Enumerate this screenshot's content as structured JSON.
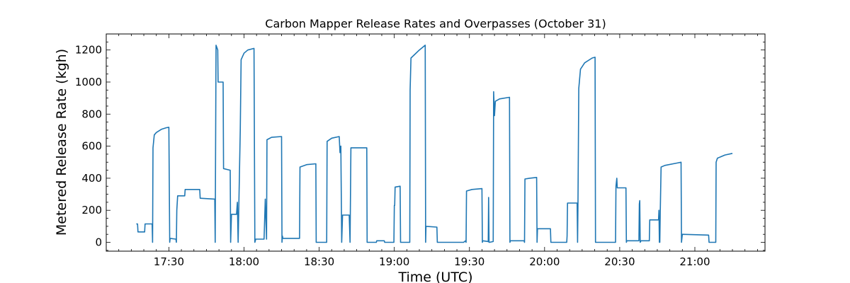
{
  "chart_data": {
    "type": "line",
    "title": "Carbon Mapper Release Rates and Overpasses (October 31)",
    "xlabel": "Time (UTC)",
    "ylabel": "Metered Release Rate (kgh)",
    "xlim": [
      "17:05",
      "21:28"
    ],
    "ylim": [
      -55,
      1300
    ],
    "xticks": [
      "17:30",
      "18:00",
      "18:30",
      "19:00",
      "19:30",
      "20:00",
      "20:30",
      "21:00"
    ],
    "yticks": [
      0,
      200,
      400,
      600,
      800,
      1000,
      1200
    ],
    "grid": false,
    "legend": "none",
    "series": [
      {
        "color": "#1f77b4",
        "points": [
          [
            "17:17:00",
            115
          ],
          [
            "17:17:30",
            115
          ],
          [
            "17:17:40",
            65
          ],
          [
            "17:20:20",
            65
          ],
          [
            "17:20:30",
            115
          ],
          [
            "17:23:20",
            115
          ],
          [
            "17:23:30",
            0
          ],
          [
            "17:23:40",
            590
          ],
          [
            "17:24:10",
            670
          ],
          [
            "17:25:00",
            685
          ],
          [
            "17:27:00",
            705
          ],
          [
            "17:29:00",
            715
          ],
          [
            "17:30:00",
            718
          ],
          [
            "17:30:20",
            0
          ],
          [
            "17:30:30",
            25
          ],
          [
            "17:32:50",
            20
          ],
          [
            "17:33:00",
            0
          ],
          [
            "17:33:10",
            200
          ],
          [
            "17:33:30",
            290
          ],
          [
            "17:36:20",
            290
          ],
          [
            "17:36:30",
            330
          ],
          [
            "17:42:20",
            330
          ],
          [
            "17:42:30",
            275
          ],
          [
            "17:48:20",
            270
          ],
          [
            "17:48:30",
            0
          ],
          [
            "17:48:50",
            1230
          ],
          [
            "17:49:30",
            1200
          ],
          [
            "17:49:40",
            1000
          ],
          [
            "17:51:40",
            1000
          ],
          [
            "17:51:50",
            460
          ],
          [
            "17:54:30",
            450
          ],
          [
            "17:54:40",
            0
          ],
          [
            "17:55:00",
            175
          ],
          [
            "17:57:00",
            175
          ],
          [
            "17:57:20",
            250
          ],
          [
            "17:57:40",
            0
          ],
          [
            "17:58:10",
            420
          ],
          [
            "17:58:30",
            700
          ],
          [
            "17:58:50",
            1140
          ],
          [
            "18:00:00",
            1180
          ],
          [
            "18:01:30",
            1200
          ],
          [
            "18:04:00",
            1210
          ],
          [
            "18:04:20",
            0
          ],
          [
            "18:04:40",
            20
          ],
          [
            "18:08:00",
            20
          ],
          [
            "18:08:30",
            270
          ],
          [
            "18:09:00",
            20
          ],
          [
            "18:09:10",
            640
          ],
          [
            "18:11:00",
            655
          ],
          [
            "18:15:00",
            660
          ],
          [
            "18:15:10",
            0
          ],
          [
            "18:15:20",
            40
          ],
          [
            "18:15:30",
            25
          ],
          [
            "18:22:10",
            25
          ],
          [
            "18:22:20",
            470
          ],
          [
            "18:25:00",
            485
          ],
          [
            "18:28:40",
            490
          ],
          [
            "18:28:50",
            0
          ],
          [
            "18:33:00",
            0
          ],
          [
            "18:33:10",
            630
          ],
          [
            "18:35:00",
            650
          ],
          [
            "18:38:00",
            660
          ],
          [
            "18:38:20",
            560
          ],
          [
            "18:38:40",
            600
          ],
          [
            "18:39:00",
            0
          ],
          [
            "18:39:20",
            170
          ],
          [
            "18:42:00",
            170
          ],
          [
            "18:42:20",
            0
          ],
          [
            "18:42:40",
            590
          ],
          [
            "18:45:00",
            590
          ],
          [
            "18:49:00",
            590
          ],
          [
            "18:49:10",
            0
          ],
          [
            "18:52:50",
            0
          ],
          [
            "18:53:00",
            10
          ],
          [
            "18:56:00",
            10
          ],
          [
            "18:56:10",
            0
          ],
          [
            "18:59:50",
            0
          ],
          [
            "19:00:00",
            230
          ],
          [
            "19:00:10",
            230
          ],
          [
            "19:00:20",
            345
          ],
          [
            "19:02:20",
            350
          ],
          [
            "19:02:30",
            0
          ],
          [
            "19:06:10",
            0
          ],
          [
            "19:06:20",
            950
          ],
          [
            "19:06:40",
            1150
          ],
          [
            "19:08:00",
            1170
          ],
          [
            "19:10:00",
            1200
          ],
          [
            "19:12:20",
            1230
          ],
          [
            "19:12:30",
            0
          ],
          [
            "19:12:40",
            100
          ],
          [
            "19:17:00",
            95
          ],
          [
            "19:17:10",
            0
          ],
          [
            "19:27:40",
            0
          ],
          [
            "19:28:30",
            10
          ],
          [
            "19:28:40",
            0
          ],
          [
            "19:28:50",
            320
          ],
          [
            "19:31:00",
            330
          ],
          [
            "19:35:00",
            335
          ],
          [
            "19:35:10",
            0
          ],
          [
            "19:35:20",
            10
          ],
          [
            "19:37:30",
            5
          ],
          [
            "19:37:40",
            280
          ],
          [
            "19:37:50",
            0
          ],
          [
            "19:38:00",
            0
          ],
          [
            "19:39:30",
            5
          ],
          [
            "19:39:40",
            940
          ],
          [
            "19:40:00",
            790
          ],
          [
            "19:40:20",
            880
          ],
          [
            "19:42:00",
            895
          ],
          [
            "19:46:00",
            905
          ],
          [
            "19:46:10",
            0
          ],
          [
            "19:46:20",
            10
          ],
          [
            "19:51:50",
            10
          ],
          [
            "19:52:00",
            0
          ],
          [
            "19:52:10",
            395
          ],
          [
            "19:54:00",
            400
          ],
          [
            "19:56:50",
            405
          ],
          [
            "19:57:00",
            0
          ],
          [
            "19:57:10",
            85
          ],
          [
            "20:02:20",
            85
          ],
          [
            "20:02:30",
            0
          ],
          [
            "20:08:50",
            0
          ],
          [
            "20:09:00",
            40
          ],
          [
            "20:09:10",
            245
          ],
          [
            "20:13:00",
            245
          ],
          [
            "20:13:10",
            0
          ],
          [
            "20:13:20",
            260
          ],
          [
            "20:13:40",
            960
          ],
          [
            "20:14:20",
            1080
          ],
          [
            "20:16:00",
            1120
          ],
          [
            "20:19:00",
            1150
          ],
          [
            "20:20:10",
            1155
          ],
          [
            "20:20:20",
            0
          ],
          [
            "20:28:20",
            0
          ],
          [
            "20:28:30",
            350
          ],
          [
            "20:28:50",
            400
          ],
          [
            "20:29:00",
            340
          ],
          [
            "20:32:30",
            340
          ],
          [
            "20:32:40",
            0
          ],
          [
            "20:32:50",
            10
          ],
          [
            "20:37:40",
            10
          ],
          [
            "20:37:50",
            240
          ],
          [
            "20:38:00",
            260
          ],
          [
            "20:38:10",
            0
          ],
          [
            "20:38:30",
            10
          ],
          [
            "20:41:50",
            10
          ],
          [
            "20:42:00",
            140
          ],
          [
            "20:45:30",
            140
          ],
          [
            "20:45:40",
            200
          ],
          [
            "20:45:50",
            0
          ],
          [
            "20:46:00",
            0
          ],
          [
            "20:46:10",
            180
          ],
          [
            "20:46:30",
            470
          ],
          [
            "20:48:00",
            480
          ],
          [
            "20:53:00",
            495
          ],
          [
            "20:54:30",
            500
          ],
          [
            "20:54:40",
            0
          ],
          [
            "20:55:00",
            50
          ],
          [
            "21:05:30",
            45
          ],
          [
            "21:05:40",
            0
          ],
          [
            "21:08:20",
            0
          ],
          [
            "21:08:30",
            500
          ],
          [
            "21:09:00",
            525
          ],
          [
            "21:12:00",
            545
          ],
          [
            "21:15:00",
            555
          ]
        ]
      }
    ]
  }
}
